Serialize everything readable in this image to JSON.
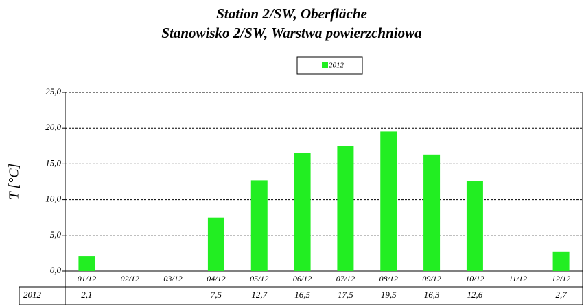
{
  "chart_data": {
    "type": "bar",
    "title": [
      "Station 2/SW, Oberfläche",
      "Stanowisko 2/SW, Warstwa powierzchniowa"
    ],
    "y_label": "T [°C]",
    "categories": [
      "01/12",
      "02/12",
      "03/12",
      "04/12",
      "05/12",
      "06/12",
      "07/12",
      "08/12",
      "09/12",
      "10/12",
      "11/12",
      "12/12"
    ],
    "series": [
      {
        "name": "2012",
        "color": "#22ee22",
        "values": [
          2.1,
          null,
          null,
          7.5,
          12.7,
          16.5,
          17.5,
          19.5,
          16.3,
          12.6,
          null,
          2.7
        ],
        "value_labels": [
          "2,1",
          null,
          null,
          "7,5",
          "12,7",
          "16,5",
          "17,5",
          "19,5",
          "16,3",
          "12,6",
          null,
          "2,7"
        ]
      }
    ],
    "ylim": [
      0,
      25
    ],
    "yticks": [
      {
        "value": 0,
        "label": "0,0"
      },
      {
        "value": 5,
        "label": "5,0"
      },
      {
        "value": 10,
        "label": "10,0"
      },
      {
        "value": 15,
        "label": "15,0"
      },
      {
        "value": 20,
        "label": "20,0"
      },
      {
        "value": 25,
        "label": "25,0"
      }
    ],
    "grid": true,
    "legend": "top"
  }
}
